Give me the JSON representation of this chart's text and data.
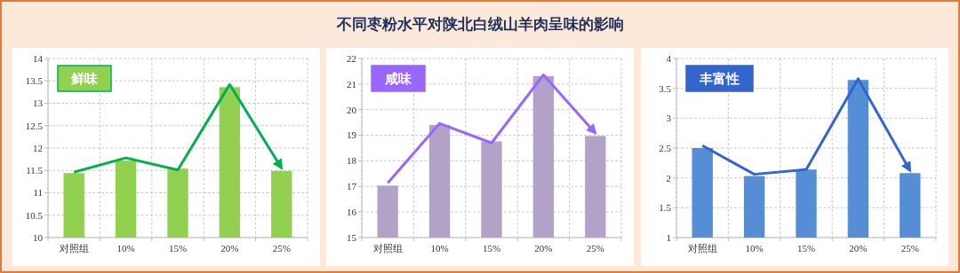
{
  "chart_data": [
    {
      "type": "bar",
      "title": "鲜味",
      "annotations": [
        "不同枣粉水平对陕北白绒山羊肉呈味的影响"
      ],
      "categories": [
        "对照组",
        "10%",
        "15%",
        "20%",
        "25%"
      ],
      "ylim": [
        10,
        14
      ],
      "yticks": [
        10,
        "10.5",
        11,
        "11.5",
        12,
        "12.5",
        13,
        "13.5",
        14
      ],
      "grid": true,
      "series": [
        {
          "color": "#92d050",
          "values": [
            11.44,
            11.72,
            11.54,
            13.36,
            11.49
          ]
        },
        {
          "type": "line",
          "color": "#00b050",
          "values": [
            11.46,
            11.78,
            11.51,
            13.42,
            11.55
          ]
        }
      ]
    },
    {
      "type": "bar",
      "title": "咸味",
      "categories": [
        "对照组",
        "10%",
        "15%",
        "20%",
        "25%"
      ],
      "ylim": [
        15,
        22
      ],
      "yticks": [
        15,
        16,
        17,
        18,
        19,
        20,
        21,
        22
      ],
      "grid": true,
      "series": [
        {
          "color": "#b3a2c7",
          "values": [
            17.03,
            19.4,
            18.76,
            21.31,
            18.97
          ]
        },
        {
          "type": "line",
          "color": "#9966ff",
          "values": [
            17.13,
            19.46,
            18.7,
            21.36,
            19.08
          ]
        }
      ]
    },
    {
      "type": "bar",
      "title": "丰富性",
      "categories": [
        "对照组",
        "10%",
        "15%",
        "20%",
        "25%"
      ],
      "ylim": [
        1,
        4
      ],
      "yticks": [
        1,
        "1.5",
        2,
        "2.5",
        3,
        "3.5",
        4
      ],
      "grid": true,
      "series": [
        {
          "color": "#558ed5",
          "values": [
            2.5,
            2.03,
            2.14,
            3.64,
            2.08
          ]
        },
        {
          "type": "line",
          "color": "#3366cc",
          "values": [
            2.54,
            2.06,
            2.14,
            3.66,
            2.12
          ]
        }
      ]
    }
  ]
}
